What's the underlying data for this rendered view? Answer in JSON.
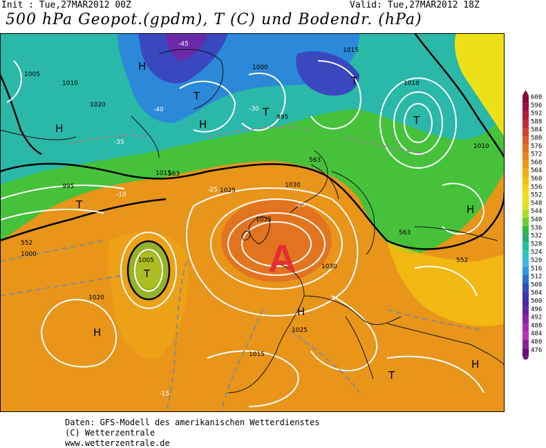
{
  "header": {
    "init": "Init : Tue,27MAR2012 00Z",
    "valid": "Valid: Tue,27MAR2012 18Z",
    "title": "500 hPa Geopot.(gpdm), T (C) und Bodendr. (hPa)"
  },
  "footer": {
    "line1": "Daten: GFS-Modell des amerikanischen Wetterdienstes",
    "line2": "(C) Wetterzentrale",
    "line3": "www.wetterzentrale.de"
  },
  "annotation": {
    "text": "A",
    "color": "#e53030"
  },
  "colorbar": {
    "levels": [
      "600",
      "596",
      "592",
      "588",
      "584",
      "580",
      "576",
      "572",
      "568",
      "564",
      "560",
      "556",
      "552",
      "548",
      "544",
      "540",
      "536",
      "532",
      "528",
      "524",
      "520",
      "516",
      "512",
      "508",
      "504",
      "500",
      "496",
      "492",
      "488",
      "484",
      "480",
      "476"
    ],
    "colors": [
      "#8a0a3a",
      "#a0103e",
      "#b81b3a",
      "#c8283a",
      "#d6402e",
      "#de5a24",
      "#e4701c",
      "#e88418",
      "#ec9a14",
      "#f0ae12",
      "#f2c010",
      "#f2d412",
      "#eee018",
      "#d6e41e",
      "#a8dc28",
      "#6ccc30",
      "#30b83a",
      "#20b070",
      "#1ec09a",
      "#28c8c0",
      "#3ab8e0",
      "#2a98e0",
      "#2a72d0",
      "#2e50c0",
      "#3a38b0",
      "#4e28a8",
      "#6a22a0",
      "#8a22a8",
      "#a82ab4",
      "#b434b8",
      "#8a1e98",
      "#6a1078"
    ]
  },
  "map": {
    "height_labels": [
      {
        "text": "563"
      },
      {
        "text": "563"
      },
      {
        "text": "552"
      },
      {
        "text": "552"
      },
      {
        "text": "563"
      }
    ],
    "pressure_labels": [
      "1015",
      "1010",
      "1005",
      "1000",
      "995",
      "1035",
      "1030",
      "1025",
      "1020",
      "1015",
      "1010",
      "1005",
      "1000",
      "995",
      "1030",
      "1025",
      "1020",
      "1015",
      "1010"
    ],
    "temp_labels": [
      "-45",
      "-40",
      "-35",
      "-30",
      "-25",
      "-20",
      "-15",
      "-10"
    ],
    "pressure_systems": [
      "H",
      "T",
      "H",
      "T",
      "H",
      "T",
      "T",
      "H",
      "T",
      "H",
      "H",
      "T",
      "H",
      "T"
    ]
  }
}
